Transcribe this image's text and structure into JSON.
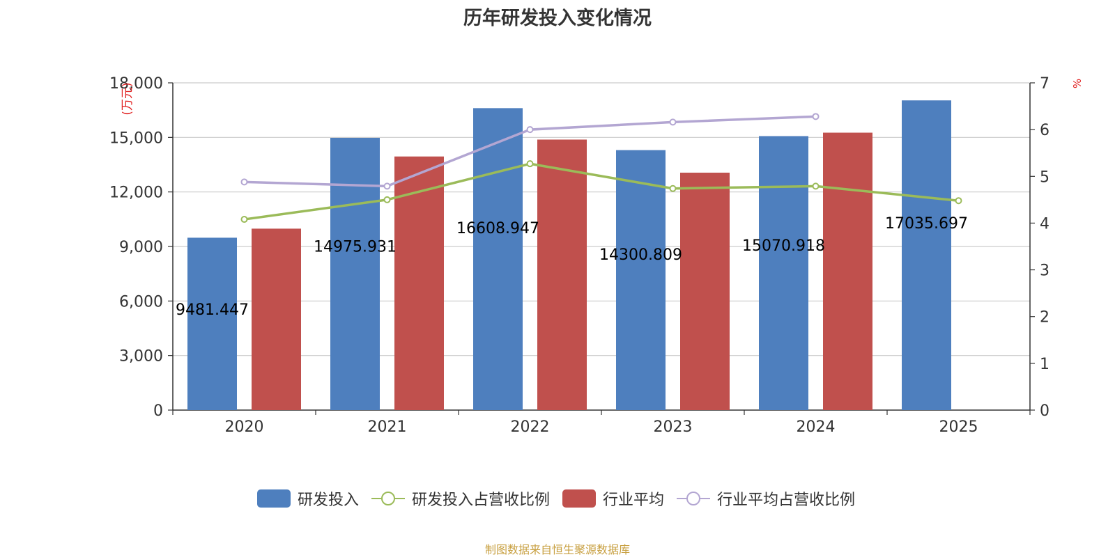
{
  "chart_data": {
    "type": "bar",
    "title": "历年研发投入变化情况",
    "categories": [
      "2020",
      "2021",
      "2022",
      "2023",
      "2024",
      "2025"
    ],
    "left_axis": {
      "label": "(万元)",
      "range": [
        0,
        18000
      ],
      "ticks": [
        "0",
        "3,000",
        "6,000",
        "9,000",
        "12,000",
        "15,000",
        "18,000"
      ]
    },
    "right_axis": {
      "label": "%",
      "range": [
        0,
        7
      ],
      "ticks": [
        "0",
        "1",
        "2",
        "3",
        "4",
        "5",
        "6",
        "7"
      ]
    },
    "series": [
      {
        "name": "研发投入",
        "kind": "bar",
        "axis": "left",
        "color": "#4e7fbe",
        "values": [
          9481.447,
          14975.931,
          16608.947,
          14300.809,
          15070.918,
          17035.697
        ],
        "labels": [
          "9481.447",
          "14975.931",
          "16608.947",
          "14300.809",
          "15070.918",
          "17035.697"
        ]
      },
      {
        "name": "研发投入占营收比例",
        "kind": "line",
        "axis": "right",
        "color": "#9bbb59",
        "values": [
          4.08,
          4.5,
          5.27,
          4.74,
          4.79,
          4.48
        ]
      },
      {
        "name": "行业平均",
        "kind": "bar",
        "axis": "left",
        "color": "#c0504d",
        "values": [
          9980,
          13950,
          14880,
          13060,
          15260,
          null
        ]
      },
      {
        "name": "行业平均占营收比例",
        "kind": "line",
        "axis": "right",
        "color": "#b3a6d2",
        "values": [
          4.88,
          4.79,
          6.0,
          6.16,
          6.28,
          null
        ]
      }
    ],
    "grid": true,
    "legend_position": "bottom"
  },
  "source": "制图数据来自恒生聚源数据库"
}
